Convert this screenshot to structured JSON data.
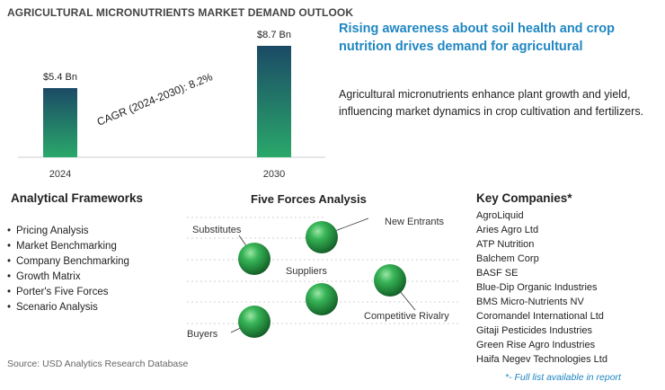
{
  "chart_data": {
    "type": "bar",
    "title": "AGRICULTURAL MICRONUTRIENTS MARKET DEMAND OUTLOOK",
    "categories": [
      "2024",
      "2030"
    ],
    "values": [
      5.4,
      8.7
    ],
    "data_labels": [
      "$5.4 Bn",
      "$8.7 Bn"
    ],
    "annotation": "CAGR (2024-2030):  8.2%",
    "colors": {
      "bar_top": "#1b4a66",
      "bar_bottom": "#2aa86a",
      "axis": "#cccccc"
    }
  },
  "headline": "Rising awareness about soil health and crop nutrition drives demand for agricultural",
  "description": "Agricultural micronutrients enhance plant growth and yield, influencing market dynamics in crop cultivation and fertilizers.",
  "analytical_frameworks": {
    "title": "Analytical Frameworks",
    "items": [
      "Pricing Analysis",
      "Market Benchmarking",
      "Company Benchmarking",
      "Growth Matrix",
      "Porter's Five Forces",
      "Scenario Analysis"
    ]
  },
  "five_forces": {
    "title": "Five Forces Analysis",
    "labels": {
      "substitutes": "Substitutes",
      "new_entrants": "New Entrants",
      "suppliers": "Suppliers",
      "competitive_rivalry": "Competitive Rivalry",
      "buyers": "Buyers"
    },
    "sphere_color": "#2e9e4a"
  },
  "key_companies": {
    "title": "Key Companies*",
    "items": [
      "AgroLiquid",
      "Aries Agro Ltd",
      "ATP Nutrition",
      "Balchem Corp",
      "BASF SE",
      "Blue-Dip Organic Industries",
      "BMS Micro-Nutrients NV",
      "Coromandel International Ltd",
      "Gitaji Pesticides Industries",
      "Green Rise Agro Industries",
      "Haifa Negev Technologies Ltd"
    ],
    "note": "*- Full list available in report"
  },
  "source": "Source: USD Analytics Research Database",
  "colors": {
    "accent": "#1f86c2"
  }
}
